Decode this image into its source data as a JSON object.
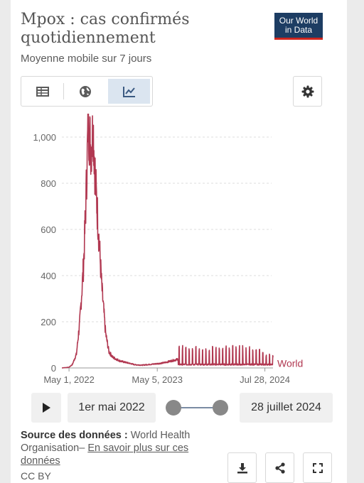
{
  "header": {
    "title": "Mpox : cas confirmés quotidiennement",
    "subtitle": "Moyenne mobile sur 7 jours",
    "logo_line1": "Our World",
    "logo_line2": "in Data"
  },
  "tabs": [
    {
      "icon": "table-icon",
      "active": false
    },
    {
      "icon": "globe-icon",
      "active": false
    },
    {
      "icon": "line-chart-icon",
      "active": true
    }
  ],
  "settings_icon": "gear-icon",
  "chart_data": {
    "type": "line",
    "title": "Mpox : cas confirmés quotidiennement",
    "subtitle": "Moyenne mobile sur 7 jours",
    "ylim": [
      0,
      1000
    ],
    "yticks": [
      "0",
      "200",
      "400",
      "600",
      "800",
      "1,000"
    ],
    "xticks": [
      "May 1, 2022",
      "May 5, 2023",
      "Jul 28, 2024"
    ],
    "grid": "horizontal dashed",
    "color": "#b13851",
    "series": [
      {
        "name": "World",
        "x": [
          "2022-04-01",
          "2022-05-01",
          "2022-05-15",
          "2022-06-01",
          "2022-06-15",
          "2022-07-01",
          "2022-07-10",
          "2022-07-20",
          "2022-08-01",
          "2022-08-10",
          "2022-08-20",
          "2022-09-01",
          "2022-09-15",
          "2022-10-01",
          "2022-10-15",
          "2022-11-01",
          "2022-12-01",
          "2023-01-01",
          "2023-02-01",
          "2023-03-01",
          "2023-04-01",
          "2023-05-01",
          "2023-06-01",
          "2023-07-01",
          "2023-08-01",
          "2023-09-01",
          "2023-10-01",
          "2023-11-01",
          "2023-12-01",
          "2024-01-01",
          "2024-02-01",
          "2024-03-01",
          "2024-04-01",
          "2024-05-01",
          "2024-06-01",
          "2024-07-01",
          "2024-08-01",
          "2024-08-31"
        ],
        "values": [
          0,
          3,
          15,
          60,
          200,
          450,
          700,
          1060,
          950,
          1040,
          800,
          600,
          350,
          150,
          70,
          45,
          30,
          22,
          14,
          12,
          15,
          18,
          22,
          30,
          38,
          40,
          40,
          42,
          40,
          40,
          42,
          40,
          40,
          40,
          38,
          35,
          25,
          20
        ]
      }
    ],
    "legend": "end of line, right",
    "weekly_spikes_after": "2023-08-01",
    "spike_peak": 90
  },
  "timeline": {
    "play_icon": "play-icon",
    "start_label": "1er mai 2022",
    "end_label": "28 juillet 2024"
  },
  "source": {
    "label": "Source des données :",
    "text": " World Health Organisation– ",
    "link": "En savoir plus sur ces données",
    "license": "CC BY"
  },
  "actions": [
    {
      "icon": "download-icon"
    },
    {
      "icon": "share-icon"
    },
    {
      "icon": "fullscreen-icon"
    }
  ]
}
